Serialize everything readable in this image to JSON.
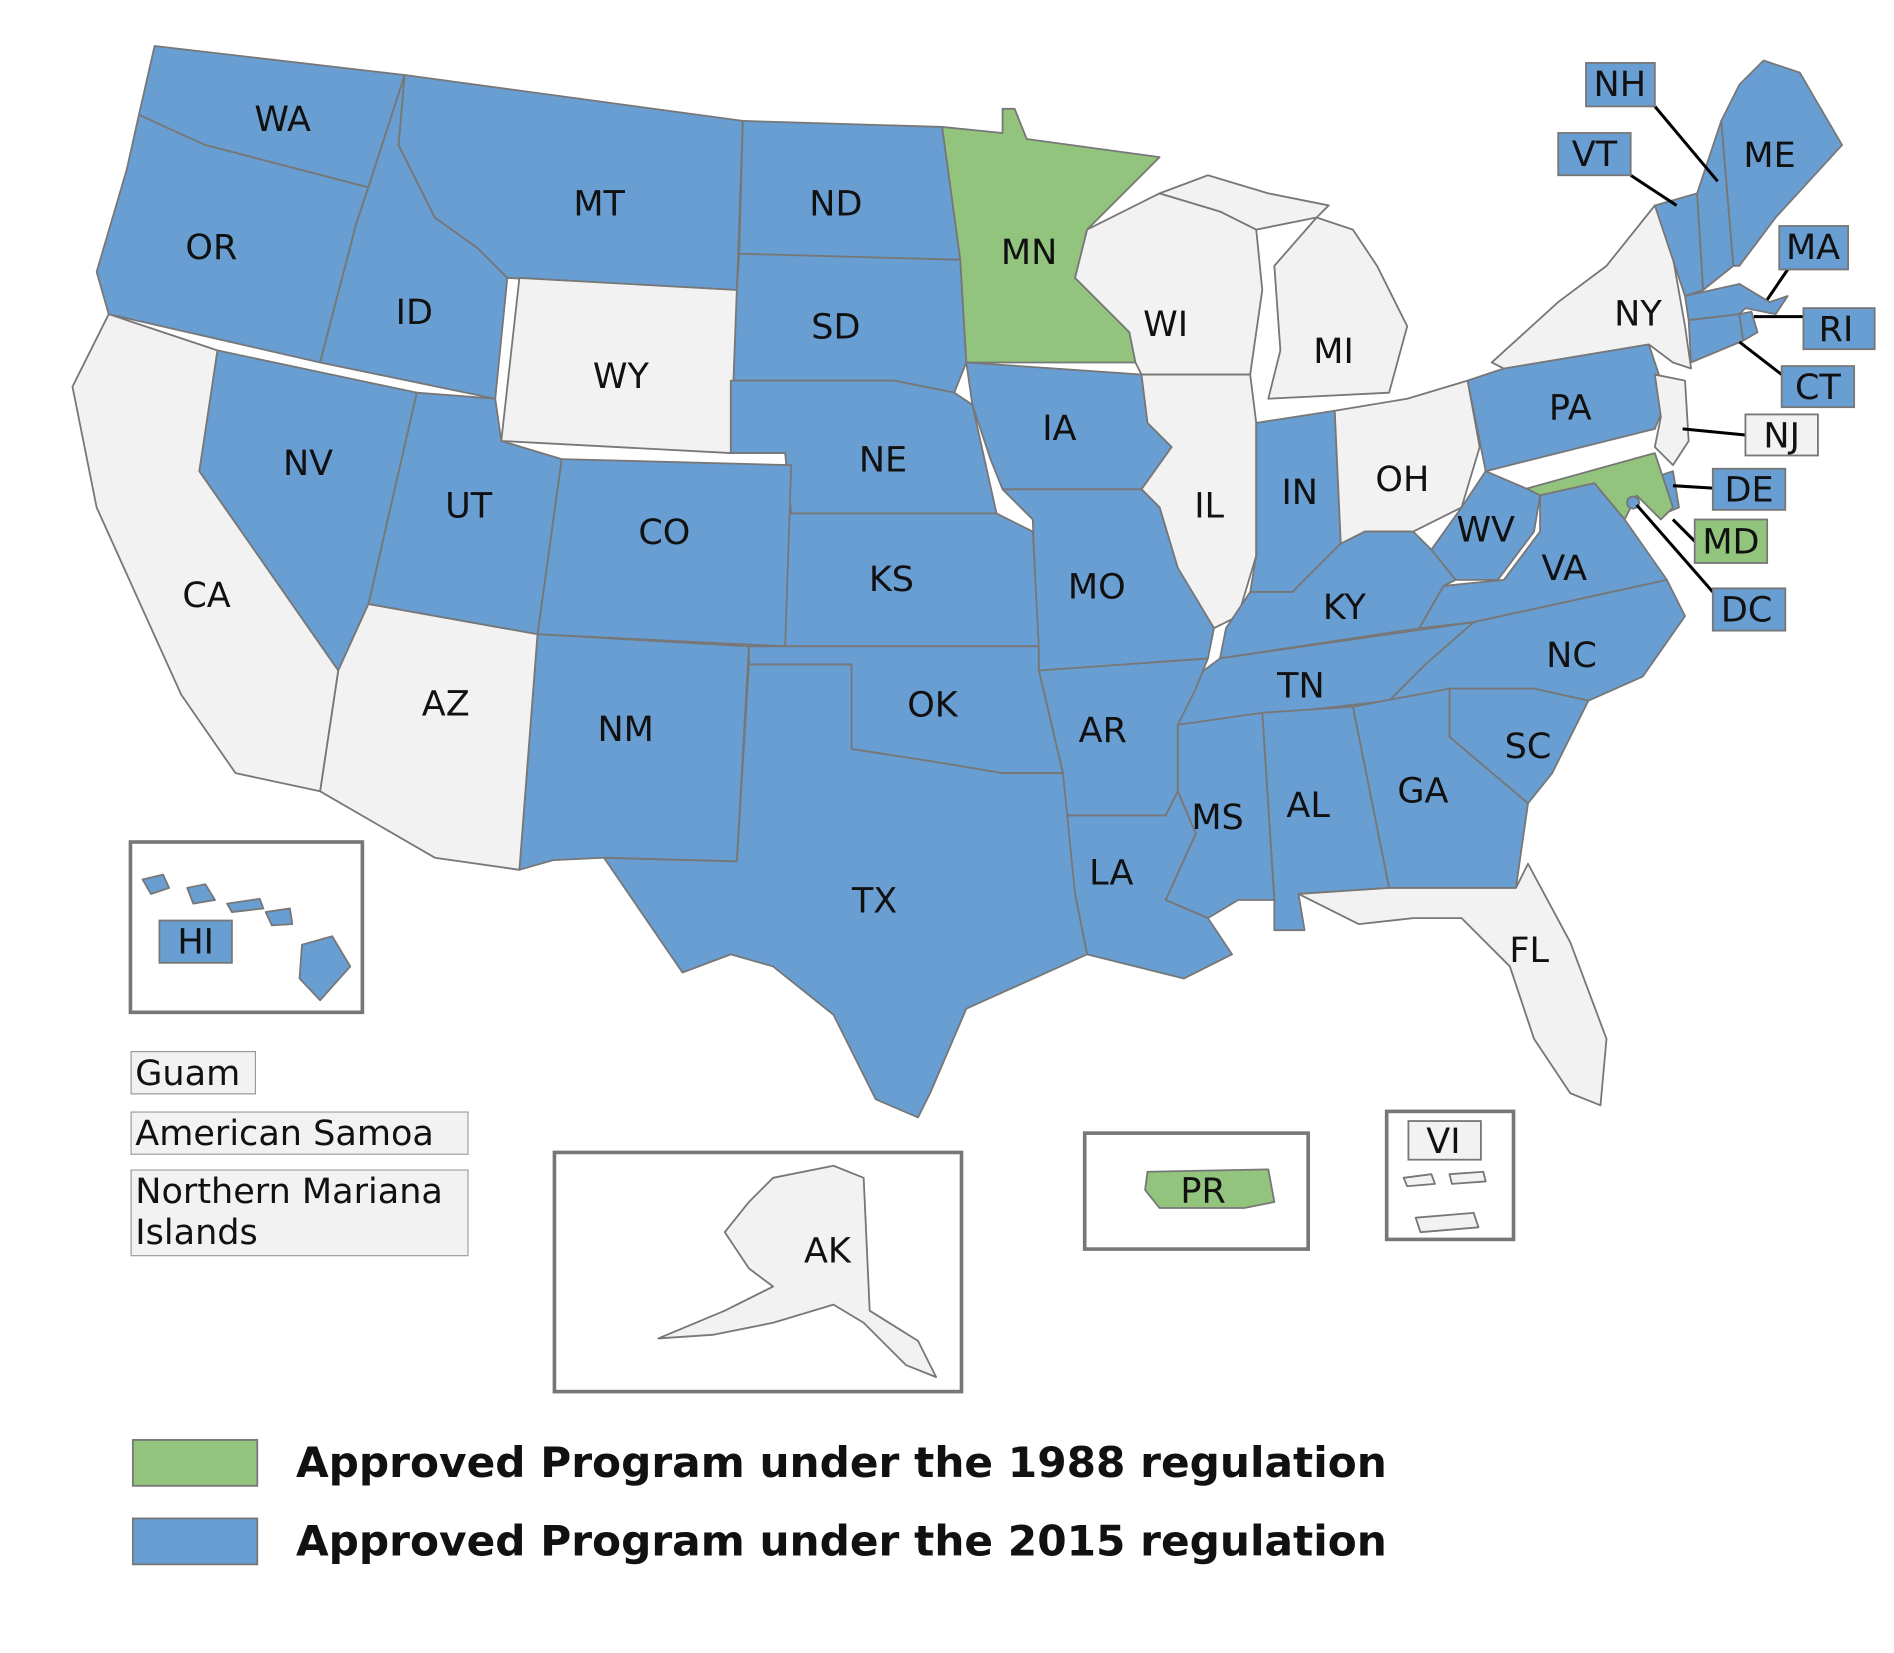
{
  "regions": [
    {
      "label": "WA",
      "color": "#699ed3"
    },
    {
      "label": "OR",
      "color": "#699ed3"
    },
    {
      "label": "ID",
      "color": "#699ed3"
    },
    {
      "label": "MT",
      "color": "#699ed3"
    },
    {
      "label": "ND",
      "color": "#699ed3"
    },
    {
      "label": "SD",
      "color": "#699ed3"
    },
    {
      "label": "WY",
      "color": "#f2f2f2"
    },
    {
      "label": "NE",
      "color": "#699ed3"
    },
    {
      "label": "MN",
      "color": "#93c47d"
    },
    {
      "label": "WI",
      "color": "#f2f2f2"
    },
    {
      "label": "MI",
      "color": "#f2f2f2"
    },
    {
      "label": "IA",
      "color": "#699ed3"
    },
    {
      "label": "IL",
      "color": "#f2f2f2"
    },
    {
      "label": "IN",
      "color": "#699ed3"
    },
    {
      "label": "OH",
      "color": "#f2f2f2"
    },
    {
      "label": "PA",
      "color": "#699ed3"
    },
    {
      "label": "NY",
      "color": "#f2f2f2"
    },
    {
      "label": "VT",
      "color": "#699ed3"
    },
    {
      "label": "NH",
      "color": "#699ed3"
    },
    {
      "label": "ME",
      "color": "#699ed3"
    },
    {
      "label": "MA",
      "color": "#699ed3"
    },
    {
      "label": "RI",
      "color": "#699ed3"
    },
    {
      "label": "CT",
      "color": "#699ed3"
    },
    {
      "label": "NJ",
      "color": "#f2f2f2"
    },
    {
      "label": "DE",
      "color": "#699ed3"
    },
    {
      "label": "MD",
      "color": "#93c47d"
    },
    {
      "label": "DC",
      "color": "#699ed3"
    },
    {
      "label": "WV",
      "color": "#699ed3"
    },
    {
      "label": "VA",
      "color": "#699ed3"
    },
    {
      "label": "KY",
      "color": "#699ed3"
    },
    {
      "label": "TN",
      "color": "#699ed3"
    },
    {
      "label": "NC",
      "color": "#699ed3"
    },
    {
      "label": "SC",
      "color": "#699ed3"
    },
    {
      "label": "GA",
      "color": "#699ed3"
    },
    {
      "label": "AL",
      "color": "#699ed3"
    },
    {
      "label": "MS",
      "color": "#699ed3"
    },
    {
      "label": "LA",
      "color": "#699ed3"
    },
    {
      "label": "AR",
      "color": "#699ed3"
    },
    {
      "label": "MO",
      "color": "#699ed3"
    },
    {
      "label": "KS",
      "color": "#699ed3"
    },
    {
      "label": "OK",
      "color": "#699ed3"
    },
    {
      "label": "TX",
      "color": "#699ed3"
    },
    {
      "label": "NM",
      "color": "#699ed3"
    },
    {
      "label": "CO",
      "color": "#699ed3"
    },
    {
      "label": "UT",
      "color": "#699ed3"
    },
    {
      "label": "NV",
      "color": "#699ed3"
    },
    {
      "label": "AZ",
      "color": "#f2f2f2"
    },
    {
      "label": "CA",
      "color": "#f2f2f2"
    },
    {
      "label": "FL",
      "color": "#f2f2f2"
    },
    {
      "label": "HI",
      "color": "#699ed3"
    },
    {
      "label": "AK",
      "color": "#f2f2f2"
    },
    {
      "label": "PR",
      "color": "#93c47d"
    },
    {
      "label": "VI",
      "color": "#f2f2f2"
    },
    {
      "label": "Guam",
      "color": "#f2f2f2"
    },
    {
      "label": "American Samoa",
      "color": "#f2f2f2"
    },
    {
      "label": "Northern Mariana Islands",
      "color": "#f2f2f2"
    }
  ],
  "legend": [
    {
      "label": "Approved Program under the 1988 regulation",
      "color": "#93c47d"
    },
    {
      "label": "Approved Program under the 2015 regulation",
      "color": "#699ed3"
    }
  ]
}
